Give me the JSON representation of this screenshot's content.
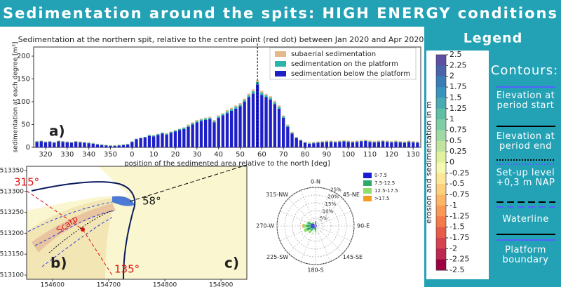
{
  "header": {
    "title": "Sedimentation around the spits: HIGH ENERGY conditions"
  },
  "chart_data": [
    {
      "type": "bar",
      "stacked": true,
      "title": "Sedimentation at the northern spit, relative to the centre point (red dot) between Jan 2020 and Apr 2020",
      "x_label": "position of the sedimented area relative to the north [deg]",
      "y_label": "sedimentation at each degree [m³]",
      "panel_label": "a)",
      "x": [
        -44,
        -42,
        -40,
        -38,
        -36,
        -34,
        -32,
        -30,
        -28,
        -26,
        -24,
        -22,
        -20,
        -18,
        -16,
        -14,
        -12,
        -10,
        -8,
        -6,
        -4,
        -2,
        0,
        2,
        4,
        6,
        8,
        10,
        12,
        14,
        16,
        18,
        20,
        22,
        24,
        26,
        28,
        30,
        32,
        34,
        36,
        38,
        40,
        42,
        44,
        46,
        48,
        50,
        52,
        54,
        56,
        58,
        60,
        62,
        64,
        66,
        68,
        70,
        72,
        74,
        76,
        78,
        80,
        82,
        84,
        86,
        88,
        90,
        92,
        94,
        96,
        98,
        100,
        102,
        104,
        106,
        108,
        110,
        112,
        114,
        116,
        118,
        120,
        122,
        124,
        126,
        128,
        130,
        132
      ],
      "series": [
        {
          "name": "subaerial sedimentation",
          "color": "#e3b98a",
          "values": [
            1,
            1,
            1,
            1,
            1,
            1,
            1,
            1,
            1,
            1,
            1,
            1,
            1,
            1,
            1,
            1,
            1,
            1,
            1,
            1,
            1,
            1,
            0,
            0,
            0,
            0,
            1,
            1,
            1,
            1,
            1,
            1,
            1,
            1,
            1,
            2,
            2,
            2,
            2,
            2,
            2,
            2,
            2,
            2,
            3,
            3,
            3,
            3,
            3,
            4,
            4,
            4,
            4,
            3,
            3,
            3,
            3,
            2,
            2,
            2,
            1,
            1,
            1,
            2,
            2,
            2,
            2,
            2,
            2,
            2,
            2,
            2,
            2,
            2,
            2,
            2,
            2,
            2,
            2,
            2,
            2,
            2,
            2,
            2,
            2,
            2,
            2,
            2,
            2
          ]
        },
        {
          "name": "sedimentation on the platform",
          "color": "#2bb5a8",
          "values": [
            1,
            1,
            1,
            1,
            1,
            1,
            1,
            1,
            1,
            1,
            1,
            1,
            1,
            1,
            1,
            1,
            1,
            1,
            1,
            1,
            1,
            1,
            1,
            1,
            1,
            1,
            2,
            2,
            2,
            2,
            2,
            2,
            2,
            2,
            3,
            3,
            3,
            3,
            3,
            3,
            3,
            3,
            3,
            3,
            4,
            4,
            4,
            4,
            4,
            4,
            5,
            5,
            5,
            4,
            4,
            4,
            4,
            3,
            3,
            2,
            2,
            1,
            1,
            1,
            1,
            1,
            1,
            1,
            1,
            1,
            1,
            1,
            1,
            1,
            1,
            1,
            1,
            1,
            1,
            1,
            1,
            1,
            1,
            1,
            1,
            1,
            1,
            1,
            1
          ]
        },
        {
          "name": "sedimentation below the platform",
          "color": "#1f1fc8",
          "values": [
            12,
            13,
            11,
            12,
            10,
            13,
            12,
            11,
            10,
            12,
            11,
            10,
            9,
            8,
            6,
            5,
            4,
            3,
            3,
            4,
            5,
            6,
            12,
            18,
            20,
            22,
            25,
            24,
            27,
            30,
            28,
            32,
            35,
            38,
            40,
            45,
            50,
            55,
            58,
            60,
            62,
            55,
            65,
            70,
            75,
            80,
            85,
            90,
            100,
            110,
            118,
            138,
            115,
            110,
            105,
            95,
            85,
            65,
            45,
            30,
            20,
            15,
            10,
            8,
            9,
            10,
            11,
            12,
            12,
            11,
            12,
            13,
            12,
            11,
            12,
            13,
            14,
            12,
            11,
            12,
            13,
            12,
            11,
            12,
            11,
            10,
            12,
            11,
            10
          ]
        }
      ],
      "vline": 58,
      "xlim": [
        -45.5,
        133.5
      ],
      "xticks": [
        {
          "value": -40,
          "label": "320"
        },
        {
          "value": -30,
          "label": "330"
        },
        {
          "value": -20,
          "label": "340"
        },
        {
          "value": -10,
          "label": "350"
        },
        0,
        10,
        20,
        30,
        40,
        50,
        60,
        70,
        80,
        90,
        100,
        110,
        120,
        130
      ],
      "ylim": [
        0,
        220
      ],
      "yticks": [
        0,
        50,
        100,
        150,
        200
      ]
    },
    {
      "type": "map",
      "panel_label": "b)",
      "annotations": [
        "315°",
        "58°",
        "135°",
        "Scarp"
      ],
      "xlim": [
        154554,
        154946
      ],
      "xticks": [
        154600,
        154700,
        154800,
        154900
      ],
      "ylim": [
        513090,
        513360
      ],
      "yticks": [
        513100,
        513150,
        513200,
        513250,
        513300,
        513350
      ]
    },
    {
      "type": "windrose",
      "panel_label": "c)",
      "categories": [
        "0-N",
        null,
        "45-NE",
        null,
        "90-E",
        null,
        "145-SE",
        null,
        "180-S",
        null,
        "225-SW",
        null,
        "270-W",
        null,
        "315-NW",
        null
      ],
      "series": [
        {
          "name": "0-7.5",
          "color": "#1a1ad6",
          "values": [
            2,
            1,
            1,
            1,
            1,
            1,
            1,
            1,
            2,
            1,
            2,
            3,
            3,
            3,
            2,
            1
          ]
        },
        {
          "name": "7.5-12.5",
          "color": "#2ea86b",
          "values": [
            1,
            0,
            0,
            0,
            0,
            0,
            0,
            0,
            1,
            1,
            2,
            3,
            3,
            2,
            1,
            0
          ]
        },
        {
          "name": "12.5-17.5",
          "color": "#8fe06a",
          "values": [
            0,
            0,
            0,
            0,
            0,
            0,
            0,
            0,
            1,
            1,
            2,
            2,
            2,
            1,
            0,
            0
          ]
        },
        {
          "name": ">17.5",
          "color": "#f39c1f",
          "values": [
            0,
            0,
            0,
            0,
            0,
            0,
            0,
            0,
            0,
            0,
            0,
            0,
            0.5,
            0,
            0,
            0
          ]
        }
      ],
      "rlim": [
        0,
        25
      ],
      "rticks": [
        {
          "value": 5,
          "label": "5%"
        },
        {
          "value": 10,
          "label": "10%"
        },
        {
          "value": 15,
          "label": "15%"
        },
        {
          "value": 20,
          "label": "20%"
        },
        {
          "value": 25,
          "label": "25%"
        }
      ]
    },
    {
      "type": "colorbar",
      "title": "erosion and sedimentation in m",
      "clim": [
        -2.5,
        2.5
      ],
      "ticks": [
        2.5,
        2.25,
        2,
        1.75,
        1.5,
        1.25,
        1,
        0.75,
        0.5,
        0.25,
        0,
        -0.25,
        -0.5,
        -0.75,
        -1,
        -1.25,
        -1.5,
        -1.75,
        -2,
        -2.25,
        -2.5
      ],
      "colors": [
        "#5e4fa2",
        "#4a64ab",
        "#3a7eb8",
        "#3794bd",
        "#4aaab3",
        "#5fbfa5",
        "#7fcda5",
        "#a0d9a4",
        "#c1e59f",
        "#e0f29b",
        "#f6f9b0",
        "#fde794",
        "#fdd07c",
        "#fdb668",
        "#fa9856",
        "#f47a47",
        "#e65c48",
        "#d6424f",
        "#bd2850",
        "#9e0142"
      ]
    }
  ],
  "legend": {
    "title": "Legend",
    "contours_title": "Contours:",
    "contours": [
      "Elevation at period start",
      "Elevation at period end",
      "Set-up level +0,3 m NAP",
      "Waterline",
      "Platform boundary"
    ]
  }
}
